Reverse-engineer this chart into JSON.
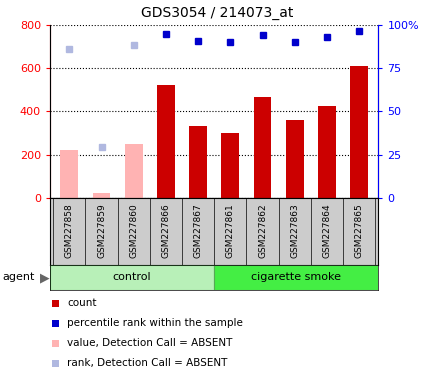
{
  "title": "GDS3054 / 214073_at",
  "samples": [
    "GSM227858",
    "GSM227859",
    "GSM227860",
    "GSM227866",
    "GSM227867",
    "GSM227861",
    "GSM227862",
    "GSM227863",
    "GSM227864",
    "GSM227865"
  ],
  "count_values": [
    null,
    null,
    null,
    520,
    330,
    300,
    465,
    360,
    425,
    610
  ],
  "count_absent": [
    220,
    20,
    250,
    null,
    null,
    null,
    null,
    null,
    null,
    null
  ],
  "rank_values": [
    null,
    null,
    null,
    760,
    725,
    720,
    755,
    720,
    745,
    770
  ],
  "rank_absent": [
    690,
    235,
    705,
    null,
    null,
    null,
    null,
    null,
    null,
    null
  ],
  "ylim_left": [
    0,
    800
  ],
  "ylim_right": [
    0,
    100
  ],
  "yticks_left": [
    0,
    200,
    400,
    600,
    800
  ],
  "yticks_right": [
    0,
    25,
    50,
    75,
    100
  ],
  "ytick_labels_right": [
    "0",
    "25",
    "50",
    "75",
    "100%"
  ],
  "bar_color_present": "#cc0000",
  "bar_color_absent": "#ffb3b3",
  "dot_color_present": "#0000cc",
  "dot_color_absent": "#b0b8e0",
  "control_color_light": "#b8f0b8",
  "smoke_color_bright": "#44ee44",
  "agent_label": "agent",
  "control_label": "control",
  "smoke_label": "cigarette smoke",
  "legend_entries": [
    {
      "color": "#cc0000",
      "label": "count"
    },
    {
      "color": "#0000cc",
      "label": "percentile rank within the sample"
    },
    {
      "color": "#ffb3b3",
      "label": "value, Detection Call = ABSENT"
    },
    {
      "color": "#b0b8e0",
      "label": "rank, Detection Call = ABSENT"
    }
  ]
}
